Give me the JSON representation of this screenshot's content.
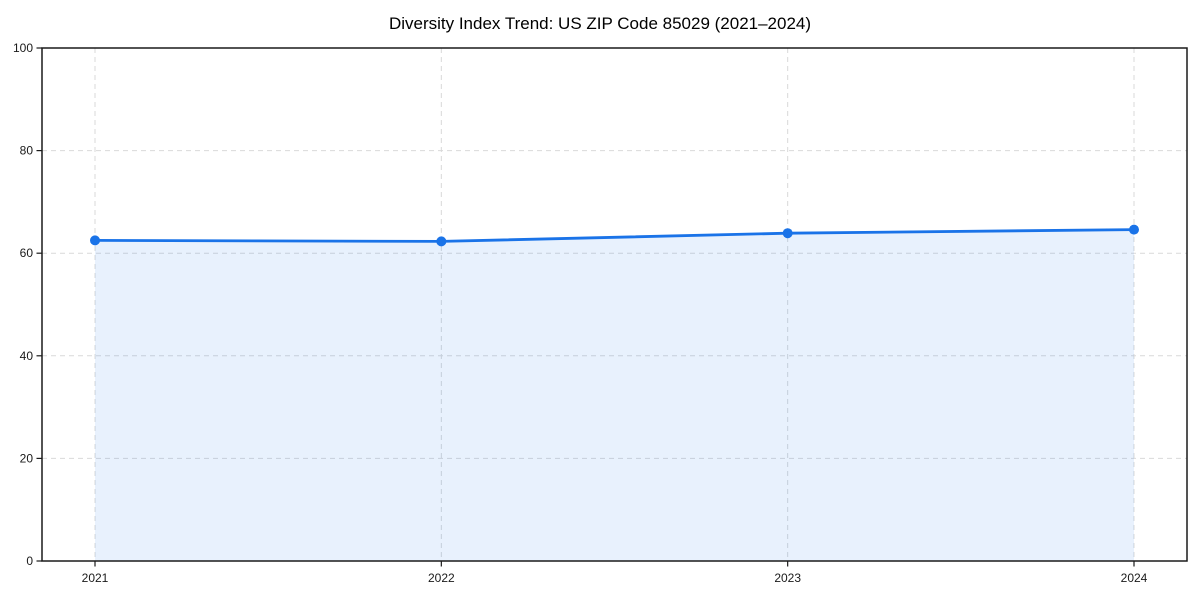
{
  "chart_data": {
    "type": "area",
    "title": "Diversity Index Trend: US ZIP Code 85029 (2021–2024)",
    "x": [
      "2021",
      "2022",
      "2023",
      "2024"
    ],
    "series": [
      {
        "name": "Diversity Index",
        "values": [
          62.5,
          62.3,
          63.9,
          64.6
        ]
      }
    ],
    "xlabel": "",
    "ylabel": "",
    "ylim": [
      0,
      100
    ],
    "yticks": [
      0,
      20,
      40,
      60,
      80,
      100
    ],
    "grid": "dashed-both-axes",
    "legend": "none",
    "colors": {
      "line": "#1a73e8",
      "marker": "#1a73e8",
      "fill": "rgba(26,115,232,0.10)",
      "grid": "#d9d9d9",
      "axis_border": "#1a1a1a",
      "tick_label": "#1a1a1a",
      "title": "#000000",
      "background": "#ffffff"
    }
  }
}
